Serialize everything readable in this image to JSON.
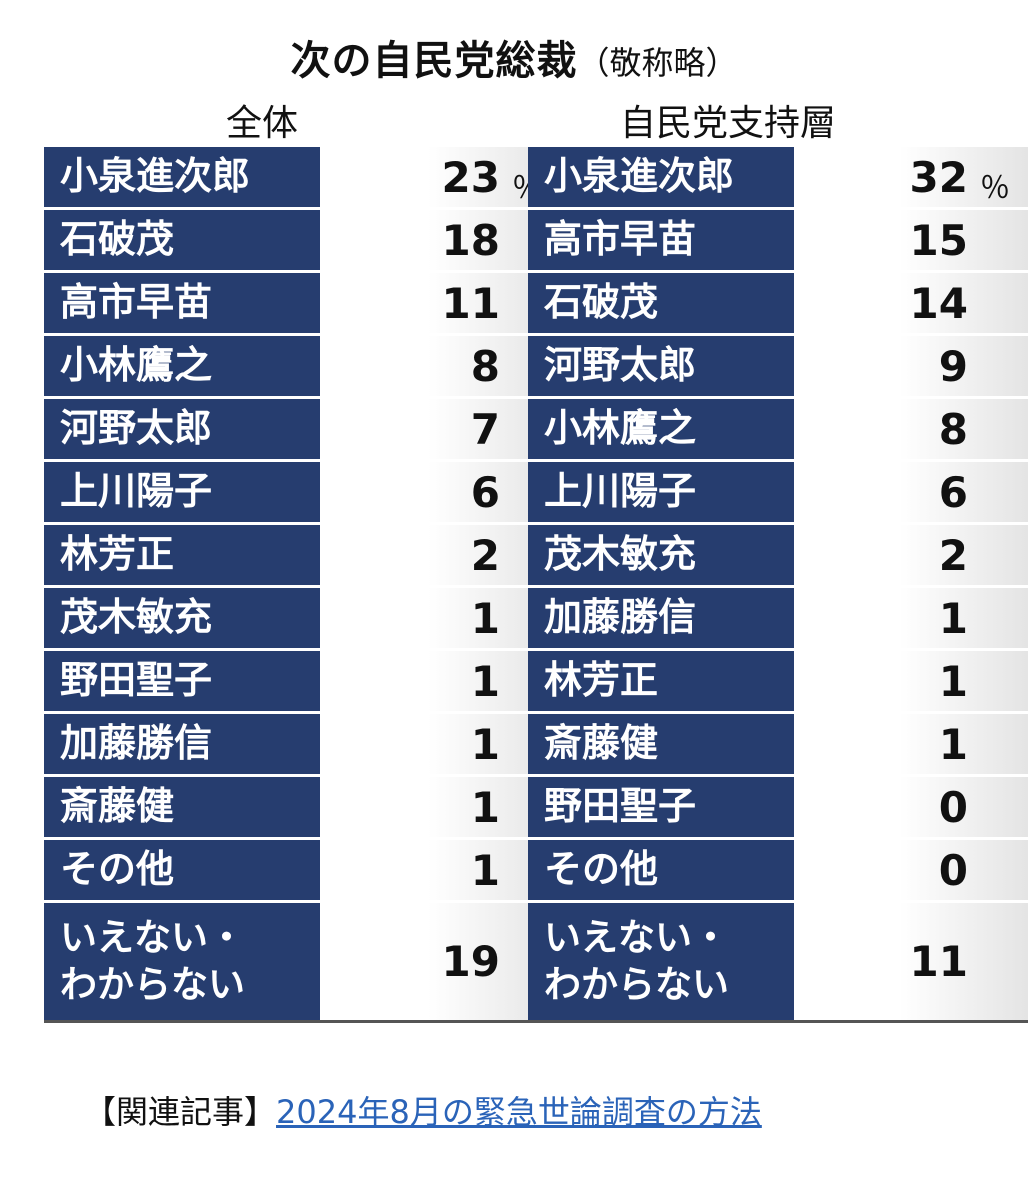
{
  "chart_data": [
    {
      "type": "table",
      "title": "次の自民党総裁",
      "title_note": "（敬称略）",
      "subtitle": "全体",
      "unit": "％",
      "categories": [
        "小泉進次郎",
        "石破茂",
        "高市早苗",
        "小林鷹之",
        "河野太郎",
        "上川陽子",
        "林芳正",
        "茂木敏充",
        "野田聖子",
        "加藤勝信",
        "斎藤健",
        "その他",
        "いえない・わからない"
      ],
      "values": [
        23,
        18,
        11,
        8,
        7,
        6,
        2,
        1,
        1,
        1,
        1,
        1,
        19
      ]
    },
    {
      "type": "table",
      "subtitle": "自民党支持層",
      "unit": "％",
      "categories": [
        "小泉進次郎",
        "高市早苗",
        "石破茂",
        "河野太郎",
        "小林鷹之",
        "上川陽子",
        "茂木敏充",
        "加藤勝信",
        "林芳正",
        "斎藤健",
        "野田聖子",
        "その他",
        "いえない・わからない"
      ],
      "values": [
        32,
        15,
        14,
        9,
        8,
        6,
        2,
        1,
        1,
        1,
        0,
        0,
        11
      ]
    }
  ],
  "related": {
    "label": "【関連記事】",
    "link_text": "2024年8月の緊急世論調査の方法"
  },
  "colors": {
    "name_cell": "#263d6f",
    "link": "#2a63b8"
  }
}
